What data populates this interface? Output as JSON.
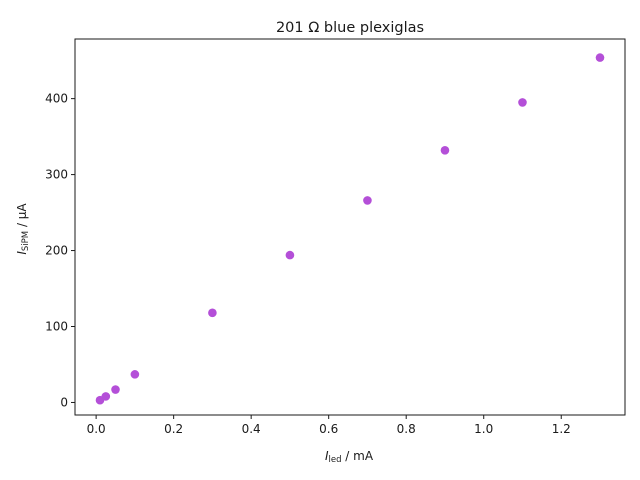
{
  "chart_data": {
    "type": "scatter",
    "title": "201 Ω blue plexiglas",
    "xlabel": {
      "symbol": "I",
      "sub": "led",
      "unit": " / mA"
    },
    "ylabel": {
      "symbol": "I",
      "sub": "SiPM",
      "unit": " / µA"
    },
    "xlim": [
      -0.0545,
      1.3645
    ],
    "ylim": [
      -16.5,
      478.5
    ],
    "xticks": [
      {
        "value": 0.0,
        "label": "0.0"
      },
      {
        "value": 0.2,
        "label": "0.2"
      },
      {
        "value": 0.4,
        "label": "0.4"
      },
      {
        "value": 0.6,
        "label": "0.6"
      },
      {
        "value": 0.8,
        "label": "0.8"
      },
      {
        "value": 1.0,
        "label": "1.0"
      },
      {
        "value": 1.2,
        "label": "1.2"
      }
    ],
    "yticks": [
      {
        "value": 0,
        "label": "0"
      },
      {
        "value": 100,
        "label": "100"
      },
      {
        "value": 200,
        "label": "200"
      },
      {
        "value": 300,
        "label": "300"
      },
      {
        "value": 400,
        "label": "400"
      }
    ],
    "grid": false,
    "marker_color": "#b44fd8",
    "x": [
      0.01,
      0.025,
      0.05,
      0.1,
      0.3,
      0.5,
      0.7,
      0.9,
      1.1,
      1.3
    ],
    "y": [
      3,
      8,
      17,
      37,
      118,
      194,
      266,
      332,
      395,
      454
    ]
  }
}
